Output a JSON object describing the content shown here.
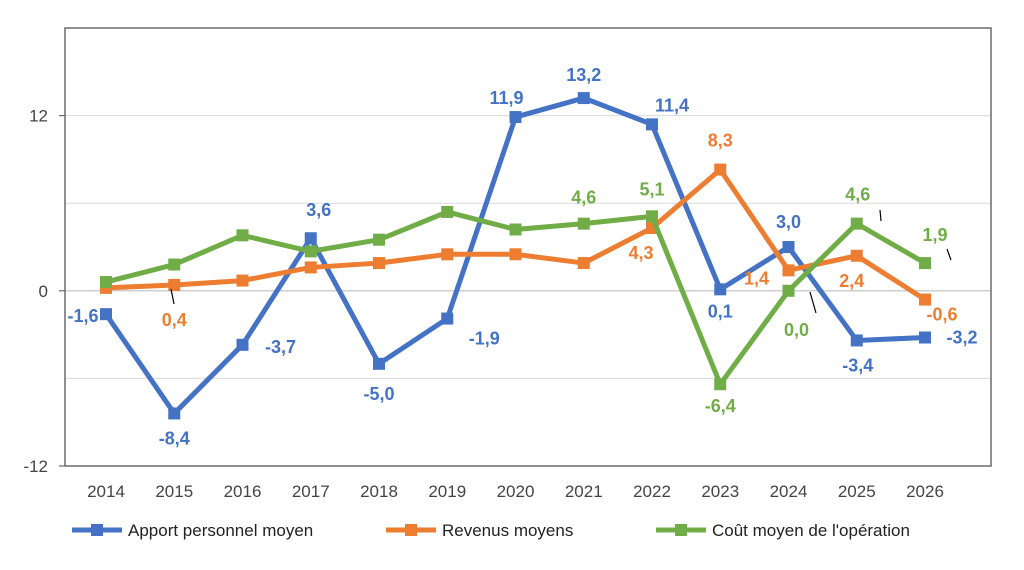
{
  "chart_data": {
    "type": "line",
    "title": "",
    "xlabel": "",
    "ylabel": "",
    "categories": [
      "2014",
      "2015",
      "2016",
      "2017",
      "2018",
      "2019",
      "2020",
      "2021",
      "2022",
      "2023",
      "2024",
      "2025",
      "2026"
    ],
    "ylim": [
      -12,
      18
    ],
    "yticks": [
      {
        "value": -12,
        "label": "-12"
      },
      {
        "value": 0,
        "label": "0"
      },
      {
        "value": 12,
        "label": "12"
      }
    ],
    "gridlines": [
      -6,
      6,
      12
    ],
    "grid": true,
    "legend_position": "bottom",
    "series": [
      {
        "name": "Apport personnel moyen",
        "color": "#4472C4",
        "values": [
          -1.6,
          -8.4,
          -3.7,
          3.6,
          -5.0,
          -1.9,
          11.9,
          13.2,
          11.4,
          0.1,
          3.0,
          -3.4,
          -3.2
        ],
        "labels": [
          "-1,6",
          "-8,4",
          "-3,7",
          "3,6",
          "-5,0",
          "-1,9",
          "11,9",
          "13,2",
          "11,4",
          "0,1",
          "3,0",
          "-3,4",
          "-3,2"
        ]
      },
      {
        "name": "Revenus moyens",
        "color": "#ED7D31",
        "values": [
          0.2,
          0.4,
          0.7,
          1.6,
          1.9,
          2.5,
          2.5,
          1.9,
          4.3,
          8.3,
          1.4,
          2.4,
          -0.6
        ],
        "labels": [
          null,
          "0,4",
          null,
          null,
          null,
          null,
          null,
          null,
          "4,3",
          "8,3",
          "1,4",
          "2,4",
          "-0,6"
        ]
      },
      {
        "name": "Coût moyen de l'opération",
        "color": "#70AD47",
        "values": [
          0.6,
          1.8,
          3.8,
          2.7,
          3.5,
          5.4,
          4.2,
          4.6,
          5.1,
          -6.4,
          0.0,
          4.6,
          1.9
        ],
        "labels": [
          null,
          null,
          null,
          null,
          null,
          null,
          null,
          "4,6",
          "5,1",
          "-6,4",
          "0,0",
          "4,6",
          "1,9"
        ]
      }
    ]
  }
}
